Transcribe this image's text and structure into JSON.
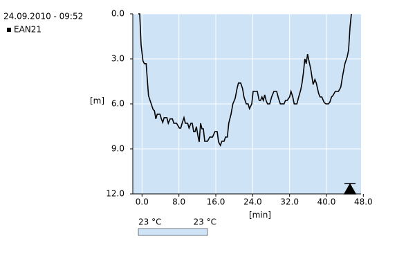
{
  "chart_data": {
    "type": "line",
    "title": "24.09.2010 - 09:52",
    "ylabel": "[m]",
    "xlabel": "[min]",
    "plot_color": "#cfe3f7",
    "grid": true,
    "y_inverted": true,
    "xlim": [
      -2,
      47.5
    ],
    "ylim": [
      0,
      12
    ],
    "xticks": [
      {
        "value": 0,
        "label": "0.0"
      },
      {
        "value": 8,
        "label": "8.0"
      },
      {
        "value": 16,
        "label": "16.0"
      },
      {
        "value": 24,
        "label": "24.0"
      },
      {
        "value": 32,
        "label": "32.0"
      },
      {
        "value": 40,
        "label": "40.0"
      },
      {
        "value": 48,
        "label": "48.0"
      }
    ],
    "yticks": [
      {
        "value": 0,
        "label": "0.0"
      },
      {
        "value": 3,
        "label": "3.0"
      },
      {
        "value": 6,
        "label": "6.0"
      },
      {
        "value": 9,
        "label": "9.0"
      },
      {
        "value": 12,
        "label": "12.0"
      }
    ],
    "x": [
      -0.8,
      -0.5,
      -0.2,
      0.2,
      0.5,
      0.9,
      1.4,
      1.9,
      2.4,
      2.7,
      3.0,
      3.3,
      3.9,
      4.2,
      4.5,
      4.8,
      5.4,
      5.7,
      6.1,
      6.6,
      6.9,
      7.5,
      8.1,
      8.4,
      8.7,
      9.1,
      9.4,
      9.9,
      10.2,
      10.6,
      10.9,
      11.2,
      11.5,
      11.8,
      12.1,
      12.4,
      12.7,
      13.0,
      13.3,
      13.6,
      14.2,
      14.7,
      15.3,
      15.8,
      16.3,
      16.6,
      17.0,
      17.3,
      17.8,
      18.1,
      18.5,
      18.8,
      19.3,
      19.7,
      20.2,
      20.6,
      20.9,
      21.4,
      21.8,
      22.1,
      22.6,
      23.0,
      23.3,
      23.8,
      24.1,
      24.5,
      25.0,
      25.4,
      25.7,
      26.0,
      26.3,
      26.6,
      26.9,
      27.2,
      27.7,
      28.1,
      28.6,
      29.2,
      29.6,
      30.0,
      30.8,
      31.1,
      31.5,
      32.0,
      32.3,
      32.7,
      33.0,
      33.6,
      33.9,
      34.4,
      34.7,
      35.0,
      35.3,
      35.6,
      35.9,
      36.2,
      36.6,
      37.1,
      37.5,
      37.8,
      38.3,
      38.6,
      39.0,
      39.5,
      39.9,
      40.4,
      40.7,
      41.1,
      41.4,
      41.9,
      42.6,
      43.1,
      43.5,
      44.0,
      44.5,
      44.8,
      45.1,
      45.4
    ],
    "series": [
      {
        "name": "EAN21",
        "color": "#000000",
        "values": [
          0,
          0,
          2.08,
          3.14,
          3.32,
          3.32,
          5.45,
          5.91,
          6.37,
          6.46,
          7.0,
          6.69,
          6.69,
          7.0,
          7.24,
          6.92,
          6.92,
          7.29,
          7.0,
          7.0,
          7.29,
          7.29,
          7.61,
          7.61,
          7.29,
          6.92,
          7.29,
          7.29,
          7.61,
          7.29,
          7.29,
          7.85,
          7.85,
          7.52,
          8.08,
          8.54,
          7.29,
          7.66,
          7.66,
          8.49,
          8.49,
          8.21,
          8.21,
          7.85,
          7.85,
          8.54,
          8.77,
          8.49,
          8.49,
          8.21,
          8.21,
          7.29,
          6.69,
          6.0,
          5.63,
          4.98,
          4.61,
          4.61,
          4.98,
          5.54,
          6.0,
          6.0,
          6.32,
          6.0,
          5.17,
          5.17,
          5.17,
          5.77,
          5.77,
          5.54,
          5.77,
          5.4,
          5.77,
          6.0,
          6.0,
          5.54,
          5.17,
          5.17,
          5.63,
          6.0,
          6.0,
          5.77,
          5.77,
          5.54,
          5.17,
          5.54,
          6.0,
          6.0,
          5.63,
          5.08,
          4.61,
          3.92,
          3.0,
          3.32,
          2.68,
          3.14,
          3.69,
          4.71,
          4.38,
          4.61,
          5.31,
          5.54,
          5.54,
          5.91,
          6.0,
          6.0,
          5.91,
          5.54,
          5.45,
          5.17,
          5.17,
          4.89,
          4.15,
          3.32,
          2.86,
          2.4,
          0.92,
          0
        ]
      }
    ],
    "colorbar": {
      "labels": [
        "23 °C",
        "23 °C"
      ],
      "color": "#cfe3f7"
    }
  }
}
